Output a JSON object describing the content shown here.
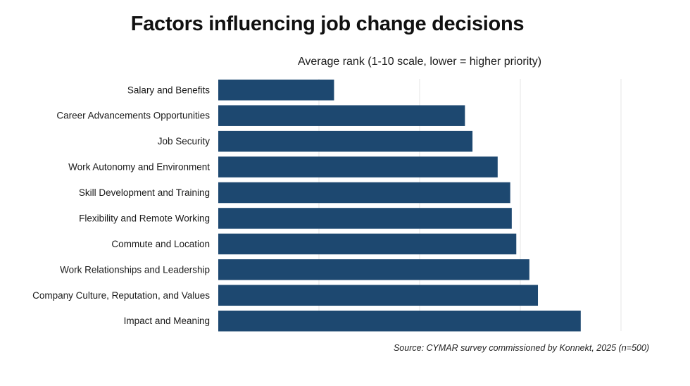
{
  "chart_data": {
    "type": "bar",
    "orientation": "horizontal",
    "title": "Factors influencing job change decisions",
    "subtitle": "Average rank (1-10 scale, lower = higher priority)",
    "categories": [
      "Salary and Benefits",
      "Career Advancements Opportunities",
      "Job Security",
      "Work Autonomy and Environment",
      "Skill Development and Training",
      "Flexibility and Remote Working",
      "Commute and Location",
      "Work Relationships and Leadership",
      "Company Culture, Reputation, and Values",
      "Impact and Meaning"
    ],
    "values": [
      2.3,
      4.9,
      5.05,
      5.55,
      5.8,
      5.83,
      5.92,
      6.18,
      6.35,
      7.2
    ],
    "xlim": [
      0,
      8
    ],
    "grid": true,
    "bar_color": "#1d4870",
    "source": "Source: CYMAR survey commissioned by Konnekt, 2025 (n=500)"
  }
}
